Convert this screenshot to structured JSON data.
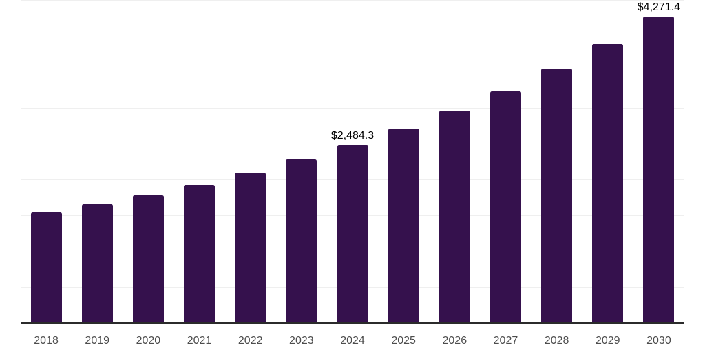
{
  "chart_data": {
    "type": "bar",
    "title": "",
    "xlabel": "",
    "ylabel": "",
    "categories": [
      "2018",
      "2019",
      "2020",
      "2021",
      "2022",
      "2023",
      "2024",
      "2025",
      "2026",
      "2027",
      "2028",
      "2029",
      "2030"
    ],
    "values": [
      1540,
      1660,
      1780,
      1920,
      2095,
      2280,
      2484.3,
      2710,
      2960,
      3225,
      3545,
      3890,
      4271.4
    ],
    "data_labels": [
      {
        "category": "2024",
        "index": 6,
        "text": "$2,484.3"
      },
      {
        "category": "2030",
        "index": 12,
        "text": "$4,271.4"
      }
    ],
    "ylim": [
      0,
      4500
    ],
    "grid_step": 500,
    "grid": "horizontal-only",
    "legend": "none",
    "colors": {
      "bar": "#35114D",
      "gridline": "#efefef",
      "axis_line": "#2b2b2b",
      "x_tick_label": "#4d4d4d",
      "data_label": "#000000",
      "background": "#ffffff"
    }
  }
}
